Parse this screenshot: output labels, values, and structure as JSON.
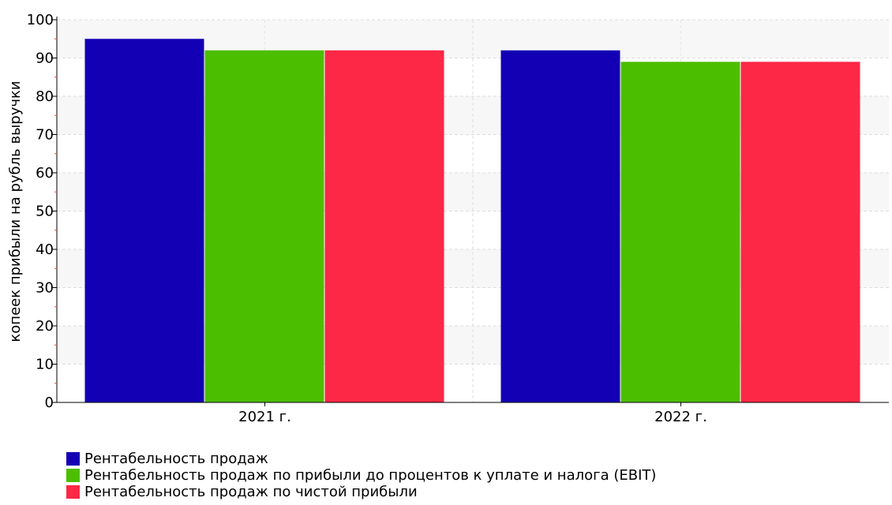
{
  "chart_data": {
    "type": "bar",
    "title": "",
    "xlabel": "",
    "ylabel": "копеек прибыли на рубль выручки",
    "categories": [
      "2021 г.",
      "2022 г."
    ],
    "ylim": [
      0,
      100
    ],
    "yticks": [
      0,
      10,
      20,
      30,
      40,
      50,
      60,
      70,
      80,
      90,
      100
    ],
    "grid": true,
    "legend_position": "bottom-left",
    "series": [
      {
        "name": "Рентабельность продаж",
        "color": "#1400b4",
        "values": [
          95,
          92
        ]
      },
      {
        "name": "Рентабельность продаж по прибыли до процентов к уплате и налога (EBIT)",
        "color": "#4cbe00",
        "values": [
          92,
          89
        ]
      },
      {
        "name": "Рентабельность продаж по чистой прибыли",
        "color": "#fd2746",
        "values": [
          92,
          89
        ]
      }
    ]
  }
}
